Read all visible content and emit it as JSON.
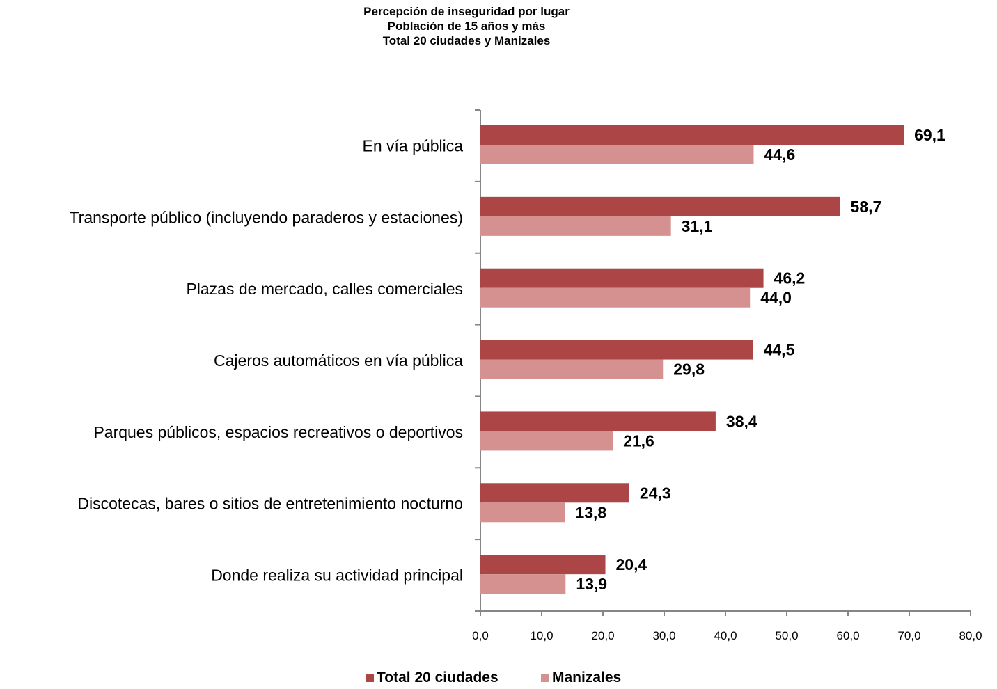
{
  "title": [
    "Percepción de inseguridad por lugar",
    "Población de 15 años y más",
    "Total 20 ciudades y Manizales"
  ],
  "chart_data": {
    "type": "bar",
    "orientation": "horizontal",
    "categories": [
      "En vía pública",
      "Transporte público (incluyendo paraderos y estaciones)",
      "Plazas de mercado, calles comerciales",
      "Cajeros automáticos en vía pública",
      "Parques públicos, espacios recreativos o deportivos",
      "Discotecas, bares o sitios de entretenimiento nocturno",
      "Donde realiza su actividad principal"
    ],
    "series": [
      {
        "name": "Total 20 ciudades",
        "color": "#ac4646",
        "values": [
          69.1,
          58.7,
          46.2,
          44.5,
          38.4,
          24.3,
          20.4
        ],
        "labels": [
          "69,1",
          "58,7",
          "46,2",
          "44,5",
          "38,4",
          "24,3",
          "20,4"
        ]
      },
      {
        "name": "Manizales",
        "color": "#d49190",
        "values": [
          44.6,
          31.1,
          44.0,
          29.8,
          21.6,
          13.8,
          13.9
        ],
        "labels": [
          "44,6",
          "31,1",
          "44,0",
          "29,8",
          "21,6",
          "13,8",
          "13,9"
        ]
      }
    ],
    "xlim": [
      0,
      80
    ],
    "xticks": [
      0,
      10,
      20,
      30,
      40,
      50,
      60,
      70,
      80
    ],
    "xtick_labels": [
      "0,0",
      "10,0",
      "20,0",
      "30,0",
      "40,0",
      "50,0",
      "60,0",
      "70,0",
      "80,0"
    ],
    "legend_position": "bottom",
    "grid": false
  }
}
